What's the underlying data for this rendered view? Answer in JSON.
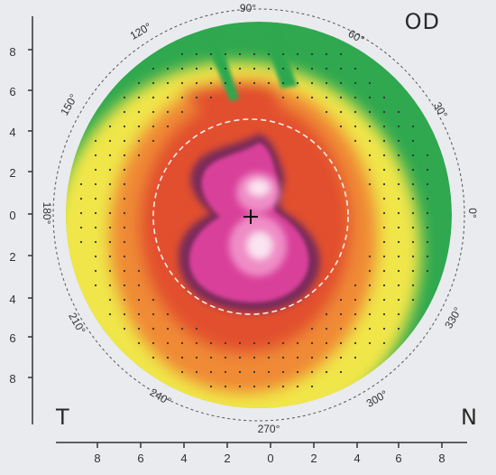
{
  "eye": "OD",
  "side_left": "T",
  "side_right": "N",
  "axis_labels": {
    "left": [
      "8",
      "6",
      "4",
      "2",
      "0",
      "2",
      "4",
      "6",
      "8"
    ],
    "bottom": [
      "8",
      "6",
      "4",
      "2",
      "0",
      "2",
      "4",
      "6",
      "8"
    ]
  },
  "angle_labels": [
    "90°",
    "60°",
    "30°",
    "0°",
    "330°",
    "300°",
    "270°",
    "240°",
    "210°",
    "180°",
    "150°",
    "120°"
  ],
  "colors": {
    "background": "#e9ebee",
    "green": "#2fa84f",
    "yellow": "#f0e64a",
    "orange": "#f08a34",
    "red": "#e2502e",
    "dark_ring": "#7a2a5a",
    "magenta": "#d9419a",
    "pink": "#ef8cc6",
    "center_light": "#fbe3f1"
  }
}
